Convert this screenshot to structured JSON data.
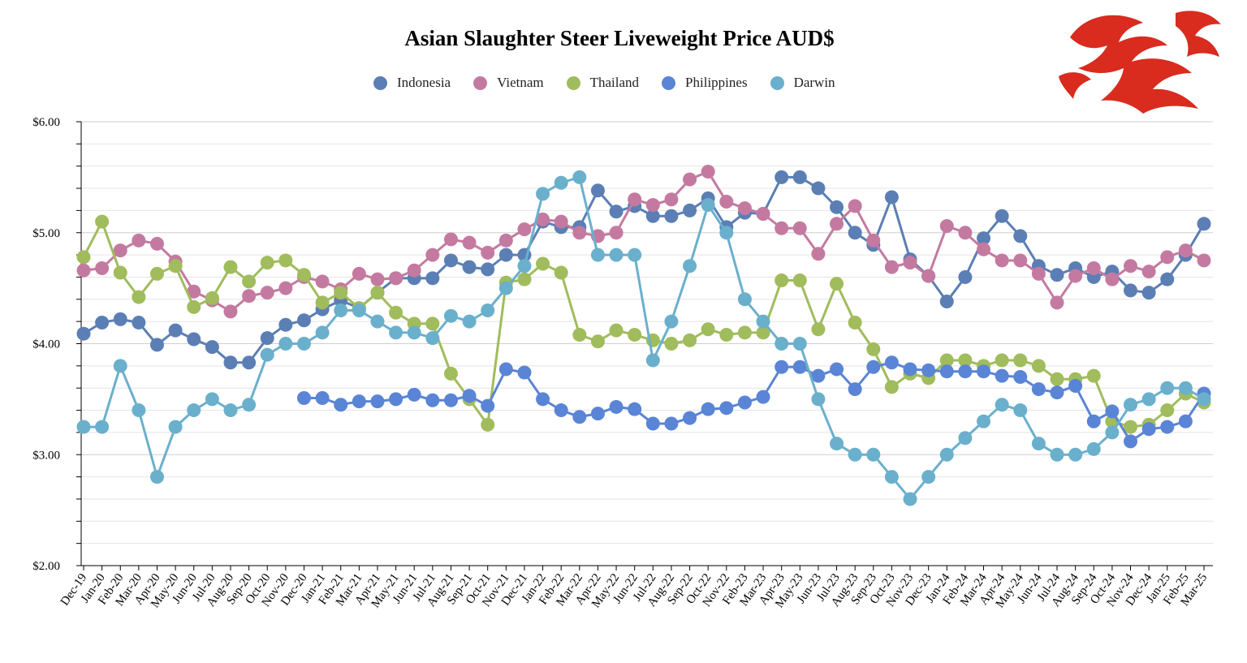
{
  "chart_data": {
    "type": "line",
    "title": "Asian Slaughter Steer Liveweight Price AUD$",
    "legend_position": "top-center",
    "grid": true,
    "ylim": [
      2.0,
      6.0
    ],
    "y_ticks": [
      "$2.00",
      "$3.00",
      "$4.00",
      "$5.00",
      "$6.00"
    ],
    "categories": [
      "Dec-19",
      "Jan-20",
      "Feb-20",
      "Mar-20",
      "Apr-20",
      "May-20",
      "Jun-20",
      "Jul-20",
      "Aug-20",
      "Sep-20",
      "Oct-20",
      "Nov-20",
      "Dec-20",
      "Jan-21",
      "Feb-21",
      "Mar-21",
      "Apr-21",
      "May-21",
      "Jun-21",
      "Jul-21",
      "Aug-21",
      "Sep-21",
      "Oct-21",
      "Nov-21",
      "Dec-21",
      "Jan-22",
      "Feb-22",
      "Mar-22",
      "Apr-22",
      "May-22",
      "Jun-22",
      "Jul-22",
      "Aug-22",
      "Sep-22",
      "Oct-22",
      "Nov-22",
      "Feb-23",
      "Mar-23",
      "Apr-23",
      "May-23",
      "Jun-23",
      "Jul-23",
      "Aug-23",
      "Sep-23",
      "Oct-23",
      "Nov-23",
      "Dec-23",
      "Jan-24",
      "Feb-24",
      "Mar-24",
      "Apr-24",
      "May-24",
      "Jun-24",
      "Jul-24",
      "Aug-24",
      "Sep-24",
      "Oct-24",
      "Nov-24",
      "Dec-24",
      "Jan-25",
      "Feb-25",
      "Mar-25"
    ],
    "series": [
      {
        "name": "Indonesia",
        "color": "#5b7fb4",
        "values": [
          4.09,
          4.19,
          4.22,
          4.19,
          3.99,
          4.12,
          4.04,
          3.97,
          3.83,
          3.83,
          4.05,
          4.17,
          4.21,
          4.31,
          4.39,
          4.32,
          4.46,
          4.59,
          4.59,
          4.59,
          4.75,
          4.69,
          4.67,
          4.8,
          4.8,
          5.1,
          5.05,
          5.05,
          5.38,
          5.19,
          5.24,
          5.15,
          5.15,
          5.2,
          5.31,
          5.05,
          5.18,
          5.17,
          5.5,
          5.5,
          5.4,
          5.23,
          5.0,
          4.89,
          5.32,
          4.76,
          4.61,
          4.38,
          4.6,
          4.95,
          5.15,
          4.97,
          4.7,
          4.62,
          4.68,
          4.6,
          4.65,
          4.48,
          4.46,
          4.58,
          4.8,
          5.08
        ]
      },
      {
        "name": "Vietnam",
        "color": "#c47aa0",
        "values": [
          4.66,
          4.68,
          4.84,
          4.93,
          4.9,
          4.74,
          4.47,
          4.39,
          4.29,
          4.43,
          4.46,
          4.5,
          4.6,
          4.56,
          4.49,
          4.63,
          4.58,
          4.59,
          4.66,
          4.8,
          4.94,
          4.91,
          4.82,
          4.93,
          5.03,
          5.12,
          5.1,
          5.0,
          4.97,
          5.0,
          5.3,
          5.25,
          5.3,
          5.48,
          5.55,
          5.28,
          5.22,
          5.17,
          5.04,
          5.04,
          4.81,
          5.08,
          5.24,
          4.93,
          4.69,
          4.73,
          4.61,
          5.06,
          5.0,
          4.85,
          4.75,
          4.75,
          4.63,
          4.37,
          4.61,
          4.68,
          4.58,
          4.7,
          4.65,
          4.78,
          4.84,
          4.75
        ]
      },
      {
        "name": "Thailand",
        "color": "#a0bc5c",
        "values": [
          4.78,
          5.1,
          4.64,
          4.42,
          4.63,
          4.7,
          4.33,
          4.41,
          4.69,
          4.56,
          4.73,
          4.75,
          4.62,
          4.37,
          4.46,
          4.32,
          4.46,
          4.28,
          4.18,
          4.18,
          3.73,
          3.5,
          3.27,
          4.55,
          4.58,
          4.72,
          4.64,
          4.08,
          4.02,
          4.12,
          4.08,
          4.03,
          4.0,
          4.03,
          4.13,
          4.08,
          4.1,
          4.1,
          4.57,
          4.57,
          4.13,
          4.54,
          4.19,
          3.95,
          3.61,
          3.73,
          3.69,
          3.85,
          3.85,
          3.8,
          3.85,
          3.85,
          3.8,
          3.68,
          3.68,
          3.71,
          3.3,
          3.25,
          3.27,
          3.4,
          3.55,
          3.47
        ]
      },
      {
        "name": "Philippines",
        "color": "#5a84d6",
        "values": [
          null,
          null,
          null,
          null,
          null,
          null,
          null,
          null,
          null,
          null,
          null,
          null,
          3.51,
          3.51,
          3.45,
          3.48,
          3.48,
          3.5,
          3.54,
          3.49,
          3.49,
          3.53,
          3.44,
          3.77,
          3.74,
          3.5,
          3.4,
          3.34,
          3.37,
          3.43,
          3.41,
          3.28,
          3.28,
          3.33,
          3.41,
          3.42,
          3.47,
          3.52,
          3.79,
          3.79,
          3.71,
          3.77,
          3.59,
          3.79,
          3.83,
          3.77,
          3.76,
          3.75,
          3.75,
          3.75,
          3.71,
          3.7,
          3.59,
          3.56,
          3.62,
          3.3,
          3.39,
          3.12,
          3.23,
          3.25,
          3.3,
          3.55
        ]
      },
      {
        "name": "Darwin",
        "color": "#6ab0cc",
        "values": [
          3.25,
          3.25,
          3.8,
          3.4,
          2.8,
          3.25,
          3.4,
          3.5,
          3.4,
          3.45,
          3.9,
          4.0,
          4.0,
          4.1,
          4.3,
          4.3,
          4.2,
          4.1,
          4.1,
          4.05,
          4.25,
          4.2,
          4.3,
          4.5,
          4.7,
          5.35,
          5.45,
          5.5,
          4.8,
          4.8,
          4.8,
          3.85,
          4.2,
          4.7,
          5.25,
          5.0,
          4.4,
          4.2,
          4.0,
          4.0,
          3.5,
          3.1,
          3.0,
          3.0,
          2.8,
          2.6,
          2.8,
          3.0,
          3.15,
          3.3,
          3.45,
          3.4,
          3.1,
          3.0,
          3.0,
          3.05,
          3.2,
          3.45,
          3.5,
          3.6,
          3.6,
          3.5
        ]
      }
    ]
  },
  "logo": {
    "name": "dragon-logo",
    "color": "#d92b1e"
  }
}
